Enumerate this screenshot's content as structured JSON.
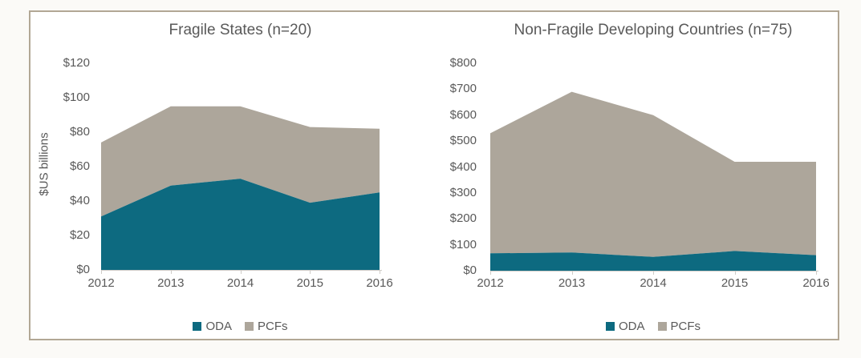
{
  "window": {
    "background": "#fbfaf7",
    "panel_background": "#ffffff",
    "panel_border_color": "#b2a795"
  },
  "colors": {
    "oda": "#0d6a80",
    "pcfs": "#ada69b",
    "text": "#595959",
    "axis": "#cfccc7"
  },
  "chart_data": [
    {
      "type": "area",
      "stacked": true,
      "title": "Fragile States (n=20)",
      "ylabel": "$US billions",
      "categories": [
        "2012",
        "2013",
        "2014",
        "2015",
        "2016"
      ],
      "series": [
        {
          "name": "ODA",
          "color_key": "oda",
          "values": [
            31,
            49,
            53,
            39,
            45
          ]
        },
        {
          "name": "PCFs",
          "color_key": "pcfs",
          "values": [
            43,
            46,
            42,
            44,
            37
          ]
        }
      ],
      "stacked_totals": [
        74,
        95,
        95,
        83,
        82
      ],
      "ylim": [
        0,
        120
      ],
      "ytick_step": 20,
      "ytick_labels": [
        "$0",
        "$20",
        "$40",
        "$60",
        "$80",
        "$100",
        "$120"
      ],
      "grid": false,
      "legend_position": "bottom-center"
    },
    {
      "type": "area",
      "stacked": true,
      "title": "Non-Fragile Developing Countries (n=75)",
      "ylabel": "",
      "categories": [
        "2012",
        "2013",
        "2014",
        "2015",
        "2016"
      ],
      "series": [
        {
          "name": "ODA",
          "color_key": "oda",
          "values": [
            67,
            70,
            53,
            76,
            60
          ]
        },
        {
          "name": "PCFs",
          "color_key": "pcfs",
          "values": [
            463,
            620,
            547,
            344,
            360
          ]
        }
      ],
      "stacked_totals": [
        530,
        690,
        600,
        420,
        420
      ],
      "ylim": [
        0,
        800
      ],
      "ytick_step": 100,
      "ytick_labels": [
        "$0",
        "$100",
        "$200",
        "$300",
        "$400",
        "$500",
        "$600",
        "$700",
        "$800"
      ],
      "grid": false,
      "legend_position": "bottom-center"
    }
  ]
}
